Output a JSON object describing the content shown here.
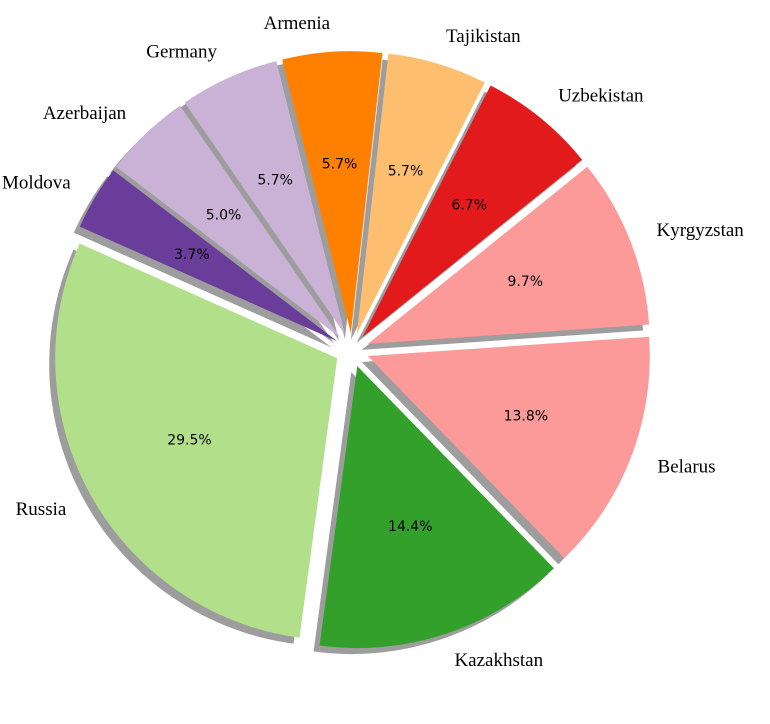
{
  "chart_data": {
    "type": "pie",
    "title": "",
    "slices": [
      {
        "label": "Russia",
        "value": 29.5,
        "pct_text": "29.5%",
        "color": "#b2df8a"
      },
      {
        "label": "Kazakhstan",
        "value": 14.4,
        "pct_text": "14.4%",
        "color": "#33a02c"
      },
      {
        "label": "Belarus",
        "value": 13.8,
        "pct_text": "13.8%",
        "color": "#fb9a99"
      },
      {
        "label": "Kyrgyzstan",
        "value": 9.7,
        "pct_text": "9.7%",
        "color": "#fb9a99"
      },
      {
        "label": "Uzbekistan",
        "value": 6.7,
        "pct_text": "6.7%",
        "color": "#e31a1c"
      },
      {
        "label": "Tajikistan",
        "value": 5.7,
        "pct_text": "5.7%",
        "color": "#fdbf6f"
      },
      {
        "label": "Armenia",
        "value": 5.7,
        "pct_text": "5.7%",
        "color": "#ff7f00"
      },
      {
        "label": "Germany",
        "value": 5.7,
        "pct_text": "5.7%",
        "color": "#cab2d6"
      },
      {
        "label": "Azerbaijan",
        "value": 5.0,
        "pct_text": "5.0%",
        "color": "#cab2d6"
      },
      {
        "label": "Moldova",
        "value": 3.7,
        "pct_text": "3.7%",
        "color": "#6a3d9a"
      }
    ],
    "shadow": true,
    "exploded": true,
    "legend": "none"
  }
}
